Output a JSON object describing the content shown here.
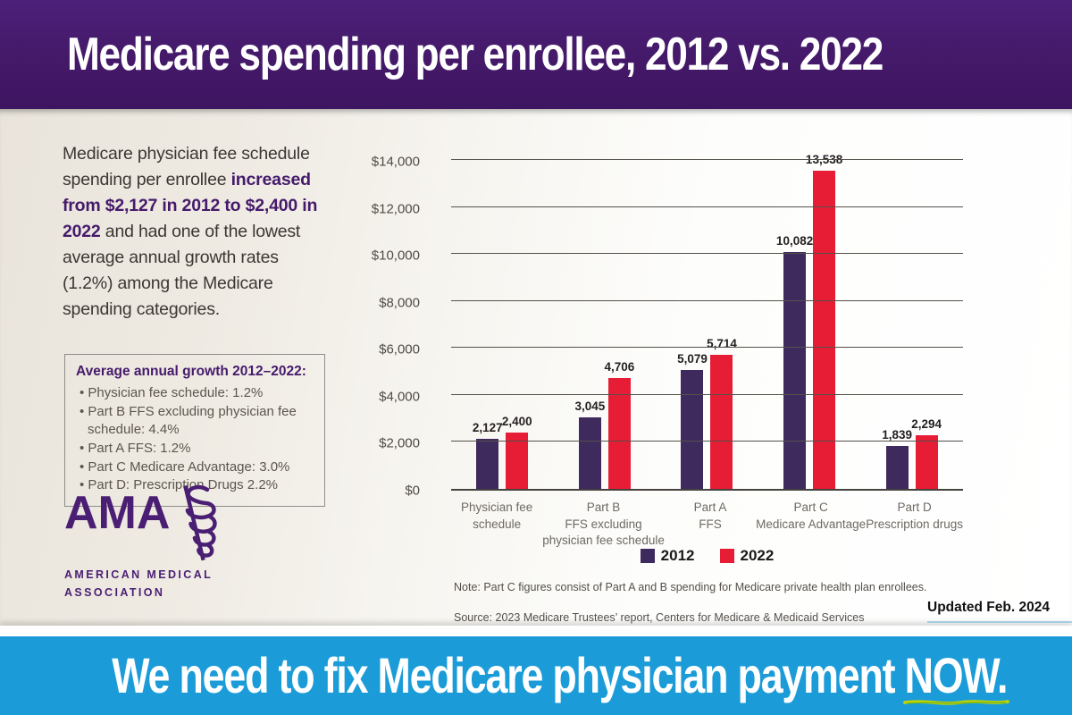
{
  "header": {
    "title": "Medicare spending per enrollee, 2012 vs. 2022"
  },
  "intro": {
    "text_start": "Medicare physician fee schedule spending per enrollee ",
    "text_bold": "increased from $2,127 in 2012 to $2,400 in 2022",
    "text_end": " and had one of the lowest average annual growth rates (1.2%) among the Medicare spending categories."
  },
  "growth_box": {
    "title": "Average annual growth 2012–2022:",
    "items": [
      "Physician fee schedule: 1.2%",
      "Part B FFS excluding physician fee schedule: 4.4%",
      "Part A FFS: 1.2%",
      "Part C Medicare Advantage: 3.0%",
      "Part D: Prescription Drugs 2.2%"
    ]
  },
  "logo": {
    "acronym": "AMA",
    "line1": "AMERICAN MEDICAL",
    "line2": "ASSOCIATION"
  },
  "chart_data": {
    "type": "bar",
    "title": "",
    "xlabel": "",
    "ylabel": "",
    "ylim": [
      0,
      14000
    ],
    "grid": "horizontal",
    "legend_position": "bottom",
    "yticks": [
      {
        "value": 0,
        "label": "$0"
      },
      {
        "value": 2000,
        "label": "$2,000"
      },
      {
        "value": 4000,
        "label": "$4,000"
      },
      {
        "value": 6000,
        "label": "$6,000"
      },
      {
        "value": 8000,
        "label": "$8,000"
      },
      {
        "value": 10000,
        "label": "$10,000"
      },
      {
        "value": 12000,
        "label": "$12,000"
      },
      {
        "value": 14000,
        "label": "$14,000"
      }
    ],
    "categories": [
      [
        "Physician fee",
        "schedule"
      ],
      [
        "Part B",
        "FFS excluding",
        "physician fee schedule"
      ],
      [
        "Part A",
        "FFS"
      ],
      [
        "Part C",
        "Medicare Advantage"
      ],
      [
        "Part D",
        "Prescription drugs"
      ]
    ],
    "series": [
      {
        "name": "2012",
        "color": "#3f2a5e",
        "values": [
          2127,
          3045,
          5079,
          10082,
          1839
        ],
        "labels": [
          "2,127",
          "3,045",
          "5,079",
          "10,082",
          "1,839"
        ]
      },
      {
        "name": "2022",
        "color": "#e71c35",
        "values": [
          2400,
          4706,
          5714,
          13538,
          2294
        ],
        "labels": [
          "2,400",
          "4,706",
          "5,714",
          "13,538",
          "2,294"
        ]
      }
    ]
  },
  "notes": {
    "note": "Note: Part C figures consist of Part A and B spending for Medicare private health plan enrollees.",
    "source": "Source: 2023 Medicare Trustees’ report, Centers for Medicare & Medicaid Services",
    "updated": "Updated Feb. 2024"
  },
  "footer": {
    "text": "We need to fix Medicare physician payment ",
    "highlight": "NOW."
  },
  "colors": {
    "brand_purple": "#451a6b",
    "logo_purple": "#4a1f73",
    "bar_purple": "#3f2a5e",
    "bar_red": "#e71c35",
    "footer_blue": "#1b9cd8",
    "marker_green": "#c4d600"
  }
}
